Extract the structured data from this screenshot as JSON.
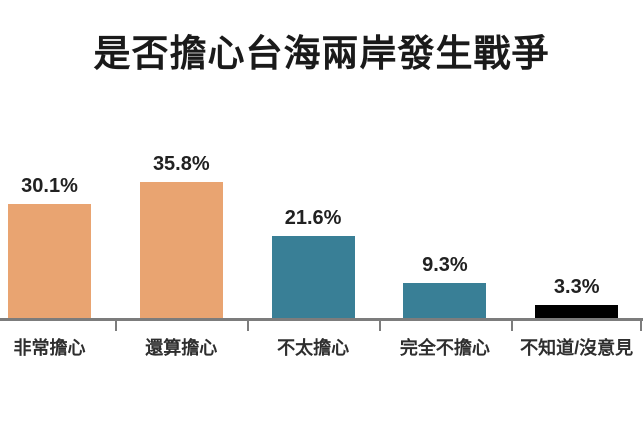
{
  "chart_data": {
    "type": "bar",
    "title": "是否擔心台海兩岸發生戰爭",
    "categories": [
      "非常擔心",
      "還算擔心",
      "不太擔心",
      "完全不擔心",
      "不知道/沒意見"
    ],
    "values": [
      30.1,
      35.8,
      21.6,
      9.3,
      3.3
    ],
    "value_labels": [
      "30.1%",
      "35.8%",
      "21.6%",
      "9.3%",
      "3.3%"
    ],
    "bar_colors": [
      "#e9a471",
      "#e9a471",
      "#397f96",
      "#397f96",
      "#000000"
    ],
    "xlabel": "",
    "ylabel": "",
    "ylim": [
      0,
      40
    ],
    "grid": false,
    "legend": false,
    "value_label_position": "above-bars",
    "colors": {
      "axis": "#7c7c7c",
      "title_text": "#1a1a1a",
      "value_text": "#212121",
      "category_text": "#2e2e2e",
      "background": "#ffffff"
    }
  }
}
